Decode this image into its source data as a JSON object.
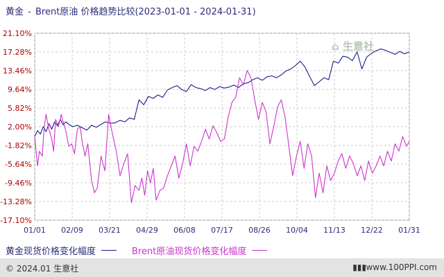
{
  "title": {
    "series1": "黄金",
    "separator": "-",
    "series2": "Brent原油",
    "rest": "价格趋势比较(2023-01-01 - 2024-01-31)"
  },
  "watermark": "生意社",
  "legend": {
    "gold": "黄金现货价格变化幅度",
    "brent": "Brent原油现货价格变化幅度"
  },
  "footer": {
    "copyright": "© 2024.01 生意社",
    "url": "www.100PPI.com"
  },
  "colors": {
    "gold": "#1a1a8c",
    "brent": "#cc33cc",
    "grid": "#cccccc"
  },
  "chart_data": {
    "type": "line",
    "title": "黄金 - Brent原油 价格趋势比较(2023-01-01 - 2024-01-31)",
    "x_ticks": [
      "01/01",
      "02/09",
      "03/21",
      "04/29",
      "06/08",
      "07/17",
      "08/26",
      "10/04",
      "11/13",
      "12/22",
      "01/31"
    ],
    "y_ticks": [
      "21.10%",
      "17.28%",
      "13.46%",
      "9.64%",
      "5.82%",
      "2.00%",
      "-1.82%",
      "-5.64%",
      "-9.46%",
      "-13.28%",
      "-17.10%"
    ],
    "ylim": [
      -17.1,
      21.1
    ],
    "xlim": [
      0,
      395
    ],
    "grid": true,
    "series": [
      {
        "name": "黄金现货价格变化幅度",
        "x": [
          0,
          3,
          6,
          9,
          12,
          15,
          18,
          21,
          24,
          27,
          30,
          33,
          36,
          40,
          45,
          50,
          55,
          60,
          65,
          70,
          75,
          80,
          85,
          90,
          95,
          100,
          105,
          110,
          115,
          120,
          125,
          130,
          135,
          140,
          145,
          150,
          155,
          160,
          165,
          170,
          175,
          180,
          185,
          190,
          195,
          200,
          205,
          210,
          215,
          220,
          225,
          230,
          235,
          240,
          245,
          250,
          255,
          260,
          265,
          270,
          275,
          280,
          285,
          290,
          295,
          300,
          305,
          310,
          315,
          320,
          325,
          330,
          335,
          340,
          345,
          350,
          355,
          360,
          365,
          370,
          375,
          380,
          385,
          390,
          395
        ],
        "values": [
          0,
          1.2,
          0.5,
          2.0,
          1.0,
          2.6,
          1.5,
          3.0,
          2.2,
          3.5,
          2.4,
          3.0,
          2.5,
          2.0,
          2.3,
          1.8,
          1.3,
          2.3,
          1.9,
          2.5,
          3.0,
          2.7,
          2.8,
          3.3,
          3.0,
          3.8,
          3.5,
          7.5,
          6.5,
          8.2,
          7.8,
          8.5,
          8.0,
          9.5,
          10.0,
          10.4,
          9.6,
          9.2,
          10.6,
          10.0,
          9.8,
          9.4,
          10.0,
          9.6,
          10.2,
          9.9,
          10.1,
          10.5,
          10.0,
          10.8,
          11.0,
          11.6,
          12.0,
          11.5,
          12.2,
          12.4,
          12.0,
          12.6,
          13.4,
          13.8,
          14.5,
          15.4,
          14.2,
          12.2,
          10.4,
          11.2,
          12.0,
          11.6,
          15.4,
          15.0,
          16.4,
          16.2,
          15.5,
          17.3,
          13.8,
          16.2,
          17.0,
          17.5,
          17.9,
          17.6,
          17.2,
          16.8,
          17.4,
          16.9,
          17.3
        ]
      },
      {
        "name": "Brent原油现货价格变化幅度",
        "x": [
          0,
          3,
          5,
          8,
          10,
          12,
          15,
          18,
          20,
          22,
          25,
          28,
          30,
          33,
          36,
          39,
          42,
          45,
          48,
          50,
          53,
          56,
          60,
          63,
          66,
          70,
          74,
          78,
          82,
          86,
          90,
          94,
          98,
          102,
          106,
          110,
          113,
          116,
          119,
          122,
          125,
          128,
          132,
          136,
          140,
          144,
          148,
          152,
          156,
          160,
          164,
          168,
          172,
          176,
          180,
          184,
          188,
          192,
          196,
          200,
          204,
          208,
          212,
          216,
          220,
          224,
          228,
          232,
          236,
          240,
          244,
          248,
          252,
          256,
          260,
          264,
          268,
          272,
          276,
          280,
          284,
          288,
          292,
          296,
          300,
          304,
          308,
          312,
          316,
          320,
          324,
          328,
          332,
          336,
          340,
          344,
          348,
          352,
          356,
          360,
          364,
          368,
          372,
          376,
          380,
          384,
          388,
          392,
          395
        ],
        "values": [
          0,
          -6.0,
          -3.0,
          -4.0,
          2.0,
          4.5,
          1.5,
          -0.5,
          -3.0,
          3.5,
          2.0,
          4.5,
          3.0,
          1.0,
          -2.0,
          -1.5,
          -3.5,
          1.5,
          2.0,
          -1.0,
          -4.0,
          -1.5,
          -9.0,
          -11.5,
          -10.5,
          -4.0,
          -7.0,
          4.5,
          0.5,
          -3.0,
          -8.0,
          -5.5,
          -3.5,
          -13.5,
          -10.0,
          -11.0,
          -8.5,
          -12.0,
          -7.0,
          -9.5,
          -6.5,
          -13.0,
          -11.0,
          -10.5,
          -8.0,
          -6.0,
          -4.0,
          -8.5,
          -5.5,
          -1.5,
          -6.0,
          -2.0,
          -3.0,
          -1.0,
          1.5,
          -0.5,
          2.2,
          0.8,
          -1.0,
          -0.5,
          4.0,
          7.0,
          8.0,
          12.0,
          10.5,
          13.5,
          12.0,
          7.5,
          3.5,
          7.0,
          5.0,
          -1.5,
          2.0,
          6.0,
          7.5,
          4.0,
          -2.0,
          -8.0,
          -4.0,
          -1.0,
          -6.5,
          -1.5,
          -4.0,
          -12.5,
          -7.5,
          -11.5,
          -6.0,
          -9.0,
          -7.5,
          -5.0,
          -3.5,
          -6.5,
          -4.0,
          -5.5,
          -8.0,
          -6.0,
          -9.0,
          -5.0,
          -7.5,
          -6.0,
          -4.0,
          -6.0,
          -3.0,
          -5.0,
          -1.5,
          -3.0,
          0,
          -2.0,
          -1.0
        ]
      }
    ]
  }
}
